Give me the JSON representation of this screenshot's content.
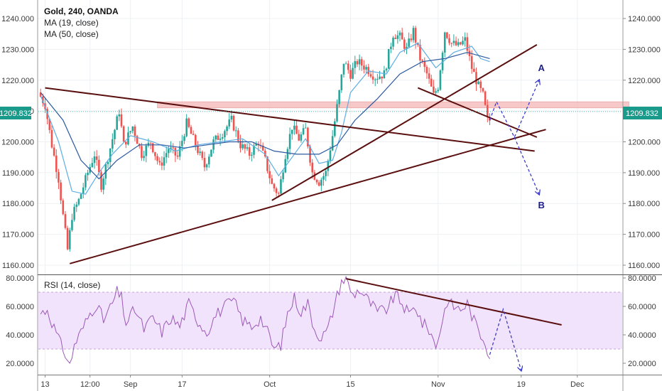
{
  "chart_data": [
    {
      "type": "candlestick",
      "title": "Gold, 240, OANDA",
      "indicators": [
        {
          "name": "MA (19, close)",
          "color": "#5dade2"
        },
        {
          "name": "MA (50, close)",
          "color": "#2c5aa0"
        }
      ],
      "last_price": "1209.832",
      "ylim": [
        1157,
        1246
      ],
      "y_ticks": [
        "1240.000",
        "1230.000",
        "1220.000",
        "1210.000",
        "1200.000",
        "1190.000",
        "1180.000",
        "1170.000",
        "1160.000"
      ],
      "y_tick_values": [
        1240,
        1230,
        1220,
        1210,
        1200,
        1190,
        1180,
        1170,
        1160
      ],
      "bull_color": "#26a69a",
      "bear_color": "#ef5350",
      "key_points": [
        {
          "x": 0,
          "y": 1216
        },
        {
          "x": 3,
          "y": 1212
        },
        {
          "x": 6,
          "y": 1199
        },
        {
          "x": 9,
          "y": 1188
        },
        {
          "x": 11,
          "y": 1176
        },
        {
          "x": 13,
          "y": 1165
        },
        {
          "x": 15,
          "y": 1176
        },
        {
          "x": 18,
          "y": 1181
        },
        {
          "x": 22,
          "y": 1190
        },
        {
          "x": 25,
          "y": 1196
        },
        {
          "x": 28,
          "y": 1186
        },
        {
          "x": 32,
          "y": 1198
        },
        {
          "x": 36,
          "y": 1210
        },
        {
          "x": 38,
          "y": 1199
        },
        {
          "x": 42,
          "y": 1205
        },
        {
          "x": 46,
          "y": 1196
        },
        {
          "x": 50,
          "y": 1200
        },
        {
          "x": 54,
          "y": 1192
        },
        {
          "x": 58,
          "y": 1198
        },
        {
          "x": 62,
          "y": 1195
        },
        {
          "x": 66,
          "y": 1206
        },
        {
          "x": 70,
          "y": 1199
        },
        {
          "x": 74,
          "y": 1192
        },
        {
          "x": 78,
          "y": 1200
        },
        {
          "x": 82,
          "y": 1203
        },
        {
          "x": 86,
          "y": 1207
        },
        {
          "x": 90,
          "y": 1199
        },
        {
          "x": 94,
          "y": 1196
        },
        {
          "x": 98,
          "y": 1200
        },
        {
          "x": 101,
          "y": 1194
        },
        {
          "x": 104,
          "y": 1186
        },
        {
          "x": 107,
          "y": 1183
        },
        {
          "x": 110,
          "y": 1196
        },
        {
          "x": 113,
          "y": 1205
        },
        {
          "x": 116,
          "y": 1201
        },
        {
          "x": 119,
          "y": 1204
        },
        {
          "x": 122,
          "y": 1190
        },
        {
          "x": 125,
          "y": 1187
        },
        {
          "x": 128,
          "y": 1190
        },
        {
          "x": 131,
          "y": 1202
        },
        {
          "x": 134,
          "y": 1216
        },
        {
          "x": 136,
          "y": 1226
        },
        {
          "x": 139,
          "y": 1222
        },
        {
          "x": 142,
          "y": 1226
        },
        {
          "x": 146,
          "y": 1224
        },
        {
          "x": 150,
          "y": 1221
        },
        {
          "x": 154,
          "y": 1222
        },
        {
          "x": 158,
          "y": 1235
        },
        {
          "x": 161,
          "y": 1234
        },
        {
          "x": 164,
          "y": 1230
        },
        {
          "x": 167,
          "y": 1236
        },
        {
          "x": 170,
          "y": 1227
        },
        {
          "x": 173,
          "y": 1222
        },
        {
          "x": 176,
          "y": 1215
        },
        {
          "x": 178,
          "y": 1218
        },
        {
          "x": 181,
          "y": 1236
        },
        {
          "x": 184,
          "y": 1232
        },
        {
          "x": 187,
          "y": 1231
        },
        {
          "x": 190,
          "y": 1233
        },
        {
          "x": 193,
          "y": 1224
        },
        {
          "x": 196,
          "y": 1218
        },
        {
          "x": 198,
          "y": 1215
        },
        {
          "x": 200,
          "y": 1207
        }
      ],
      "ma19": [
        {
          "x": 0,
          "y": 1215
        },
        {
          "x": 8,
          "y": 1200
        },
        {
          "x": 14,
          "y": 1184
        },
        {
          "x": 20,
          "y": 1183
        },
        {
          "x": 26,
          "y": 1190
        },
        {
          "x": 32,
          "y": 1196
        },
        {
          "x": 40,
          "y": 1202
        },
        {
          "x": 50,
          "y": 1200
        },
        {
          "x": 60,
          "y": 1197
        },
        {
          "x": 70,
          "y": 1199
        },
        {
          "x": 80,
          "y": 1200
        },
        {
          "x": 90,
          "y": 1201
        },
        {
          "x": 100,
          "y": 1196
        },
        {
          "x": 106,
          "y": 1189
        },
        {
          "x": 112,
          "y": 1195
        },
        {
          "x": 118,
          "y": 1201
        },
        {
          "x": 124,
          "y": 1193
        },
        {
          "x": 130,
          "y": 1194
        },
        {
          "x": 134,
          "y": 1203
        },
        {
          "x": 138,
          "y": 1216
        },
        {
          "x": 146,
          "y": 1223
        },
        {
          "x": 154,
          "y": 1222
        },
        {
          "x": 160,
          "y": 1229
        },
        {
          "x": 168,
          "y": 1232
        },
        {
          "x": 176,
          "y": 1224
        },
        {
          "x": 184,
          "y": 1229
        },
        {
          "x": 192,
          "y": 1231
        },
        {
          "x": 196,
          "y": 1227
        },
        {
          "x": 200,
          "y": 1226
        }
      ],
      "ma50": [
        {
          "x": 0,
          "y": 1216
        },
        {
          "x": 10,
          "y": 1207
        },
        {
          "x": 18,
          "y": 1194
        },
        {
          "x": 26,
          "y": 1188
        },
        {
          "x": 34,
          "y": 1194
        },
        {
          "x": 44,
          "y": 1199
        },
        {
          "x": 54,
          "y": 1199
        },
        {
          "x": 64,
          "y": 1198
        },
        {
          "x": 74,
          "y": 1199
        },
        {
          "x": 84,
          "y": 1200
        },
        {
          "x": 94,
          "y": 1200
        },
        {
          "x": 104,
          "y": 1197
        },
        {
          "x": 114,
          "y": 1196
        },
        {
          "x": 124,
          "y": 1196
        },
        {
          "x": 132,
          "y": 1199
        },
        {
          "x": 140,
          "y": 1207
        },
        {
          "x": 150,
          "y": 1214
        },
        {
          "x": 160,
          "y": 1222
        },
        {
          "x": 170,
          "y": 1226
        },
        {
          "x": 180,
          "y": 1227
        },
        {
          "x": 190,
          "y": 1229
        },
        {
          "x": 200,
          "y": 1227
        }
      ],
      "resistance_zone": {
        "x_start": 52,
        "x_end": 262,
        "y_low": 1211,
        "y_high": 1213,
        "color": "#f4b6b6"
      },
      "trendlines": [
        {
          "name": "upper-descending-trendline",
          "x1": 2,
          "y1": 1217.5,
          "x2": 220,
          "y2": 1197
        },
        {
          "name": "lower-ascending-trendline",
          "x1": 13,
          "y1": 1160.5,
          "x2": 225,
          "y2": 1204
        },
        {
          "name": "steep-ascending-trendline",
          "x1": 103,
          "y1": 1181,
          "x2": 221,
          "y2": 1231.5
        },
        {
          "name": "short-descending-trendline",
          "x1": 168,
          "y1": 1217.5,
          "x2": 221,
          "y2": 1201.5
        }
      ],
      "projections": [
        {
          "name": "projection-a",
          "points": [
            {
              "x": 200,
              "y": 1207
            },
            {
              "x": 203,
              "y": 1213
            },
            {
              "x": 211,
              "y": 1201.5
            },
            {
              "x": 222,
              "y": 1220
            }
          ]
        },
        {
          "name": "projection-b",
          "points": [
            {
              "x": 211,
              "y": 1201.5
            },
            {
              "x": 222,
              "y": 1183
            }
          ]
        }
      ],
      "projection_labels": [
        {
          "label": "A",
          "x": 223,
          "y": 1223
        },
        {
          "label": "B",
          "x": 223,
          "y": 1178.5
        }
      ]
    },
    {
      "type": "line",
      "title": "RSI (14, close)",
      "color": "#9b59b6",
      "ylim": [
        12,
        82
      ],
      "y_ticks": [
        "80.0000",
        "60.0000",
        "40.0000",
        "20.0000"
      ],
      "y_tick_values": [
        80,
        60,
        40,
        20
      ],
      "band": {
        "low": 30,
        "high": 70
      },
      "key_points": [
        {
          "x": 0,
          "y": 55
        },
        {
          "x": 3,
          "y": 58
        },
        {
          "x": 6,
          "y": 45
        },
        {
          "x": 9,
          "y": 33
        },
        {
          "x": 11,
          "y": 27
        },
        {
          "x": 13,
          "y": 18
        },
        {
          "x": 15,
          "y": 33
        },
        {
          "x": 18,
          "y": 42
        },
        {
          "x": 22,
          "y": 55
        },
        {
          "x": 25,
          "y": 62
        },
        {
          "x": 28,
          "y": 50
        },
        {
          "x": 32,
          "y": 62
        },
        {
          "x": 34,
          "y": 70
        },
        {
          "x": 36,
          "y": 66
        },
        {
          "x": 38,
          "y": 48
        },
        {
          "x": 42,
          "y": 58
        },
        {
          "x": 46,
          "y": 44
        },
        {
          "x": 50,
          "y": 52
        },
        {
          "x": 54,
          "y": 42
        },
        {
          "x": 58,
          "y": 52
        },
        {
          "x": 62,
          "y": 46
        },
        {
          "x": 66,
          "y": 62
        },
        {
          "x": 70,
          "y": 50
        },
        {
          "x": 74,
          "y": 42
        },
        {
          "x": 78,
          "y": 54
        },
        {
          "x": 82,
          "y": 60
        },
        {
          "x": 86,
          "y": 64
        },
        {
          "x": 90,
          "y": 50
        },
        {
          "x": 94,
          "y": 46
        },
        {
          "x": 98,
          "y": 52
        },
        {
          "x": 101,
          "y": 42
        },
        {
          "x": 104,
          "y": 30
        },
        {
          "x": 107,
          "y": 33
        },
        {
          "x": 110,
          "y": 55
        },
        {
          "x": 113,
          "y": 66
        },
        {
          "x": 116,
          "y": 56
        },
        {
          "x": 119,
          "y": 62
        },
        {
          "x": 122,
          "y": 44
        },
        {
          "x": 125,
          "y": 38
        },
        {
          "x": 128,
          "y": 44
        },
        {
          "x": 131,
          "y": 62
        },
        {
          "x": 134,
          "y": 78
        },
        {
          "x": 136,
          "y": 79
        },
        {
          "x": 139,
          "y": 68
        },
        {
          "x": 142,
          "y": 72
        },
        {
          "x": 146,
          "y": 64
        },
        {
          "x": 150,
          "y": 56
        },
        {
          "x": 154,
          "y": 58
        },
        {
          "x": 158,
          "y": 68
        },
        {
          "x": 161,
          "y": 62
        },
        {
          "x": 164,
          "y": 54
        },
        {
          "x": 167,
          "y": 60
        },
        {
          "x": 170,
          "y": 48
        },
        {
          "x": 173,
          "y": 44
        },
        {
          "x": 176,
          "y": 32
        },
        {
          "x": 178,
          "y": 44
        },
        {
          "x": 181,
          "y": 64
        },
        {
          "x": 184,
          "y": 60
        },
        {
          "x": 187,
          "y": 58
        },
        {
          "x": 190,
          "y": 62
        },
        {
          "x": 193,
          "y": 50
        },
        {
          "x": 196,
          "y": 40
        },
        {
          "x": 198,
          "y": 36
        },
        {
          "x": 200,
          "y": 24
        }
      ],
      "trendlines": [
        {
          "name": "rsi-descending-trendline",
          "x1": 136,
          "y1": 79.5,
          "x2": 232,
          "y2": 47
        }
      ],
      "projections": [
        {
          "name": "rsi-projection",
          "points": [
            {
              "x": 200,
              "y": 26
            },
            {
              "x": 206,
              "y": 58
            },
            {
              "x": 214,
              "y": 15
            }
          ]
        }
      ]
    }
  ],
  "x_ticks": [
    {
      "label": "13",
      "x": 2
    },
    {
      "label": "12:00",
      "x": 22
    },
    {
      "label": "Sep",
      "x": 40
    },
    {
      "label": "17",
      "x": 63
    },
    {
      "label": "Oct",
      "x": 102
    },
    {
      "label": "15",
      "x": 138
    },
    {
      "label": "Nov",
      "x": 177
    },
    {
      "label": "19",
      "x": 214
    },
    {
      "label": "Dec",
      "x": 239
    }
  ],
  "xlim": [
    -1,
    259
  ]
}
